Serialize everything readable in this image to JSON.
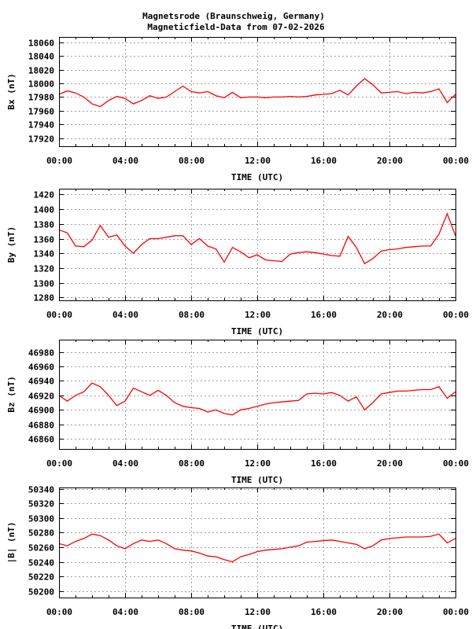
{
  "title_line1": "Magnetsrode (Braunschweig, Germany)",
  "title_line2": "Magneticfield-Data from 07-02-2026",
  "colors": {
    "series": "#ff0000",
    "grid": "#a0a0a0",
    "axis": "#000000"
  },
  "chart_data": [
    {
      "type": "line",
      "ylabel": "Bx (nT)",
      "xlabel": "TIME (UTC)",
      "xticks": [
        "00:00",
        "04:00",
        "08:00",
        "12:00",
        "16:00",
        "20:00",
        "00:00"
      ],
      "xlim": [
        0,
        24
      ],
      "yticks": [
        17920,
        17940,
        17960,
        17980,
        18000,
        18020,
        18040,
        18060
      ],
      "ylim": [
        17908,
        18068
      ],
      "grid": true,
      "x_step_hours": 0.5,
      "values": [
        17984,
        17989,
        17986,
        17980,
        17970,
        17966,
        17975,
        17981,
        17978,
        17970,
        17975,
        17982,
        17978,
        17980,
        17988,
        17996,
        17988,
        17986,
        17988,
        17982,
        17979,
        17987,
        17979,
        17980,
        17980,
        17979,
        17980,
        17980,
        17981,
        17980,
        17981,
        17983,
        17984,
        17985,
        17990,
        17983,
        17996,
        18007,
        17998,
        17986,
        17987,
        17988,
        17985,
        17987,
        17986,
        17988,
        17992,
        17972,
        17984
      ]
    },
    {
      "type": "line",
      "ylabel": "By (nT)",
      "xlabel": "TIME (UTC)",
      "xticks": [
        "00:00",
        "04:00",
        "08:00",
        "12:00",
        "16:00",
        "20:00",
        "00:00"
      ],
      "xlim": [
        0,
        24
      ],
      "yticks": [
        1280,
        1300,
        1320,
        1340,
        1360,
        1380,
        1400,
        1420
      ],
      "ylim": [
        1276,
        1428
      ],
      "grid": true,
      "x_step_hours": 0.5,
      "values": [
        1372,
        1368,
        1350,
        1349,
        1358,
        1378,
        1362,
        1365,
        1350,
        1340,
        1352,
        1360,
        1360,
        1362,
        1364,
        1364,
        1352,
        1360,
        1350,
        1346,
        1328,
        1348,
        1342,
        1334,
        1338,
        1331,
        1330,
        1329,
        1339,
        1341,
        1342,
        1341,
        1339,
        1337,
        1336,
        1363,
        1348,
        1326,
        1333,
        1343,
        1345,
        1346,
        1348,
        1349,
        1350,
        1350,
        1366,
        1394,
        1364
      ]
    },
    {
      "type": "line",
      "ylabel": "Bz (nT)",
      "xlabel": "TIME (UTC)",
      "xticks": [
        "00:00",
        "04:00",
        "08:00",
        "12:00",
        "16:00",
        "20:00",
        "00:00"
      ],
      "xlim": [
        0,
        24
      ],
      "yticks": [
        46860,
        46880,
        46900,
        46920,
        46940,
        46960,
        46980
      ],
      "ylim": [
        46846,
        46997
      ],
      "grid": true,
      "x_step_hours": 0.5,
      "values": [
        46920,
        46912,
        46920,
        46925,
        46937,
        46932,
        46920,
        46906,
        46912,
        46930,
        46925,
        46920,
        46927,
        46920,
        46910,
        46905,
        46903,
        46902,
        46897,
        46900,
        46895,
        46893,
        46900,
        46902,
        46905,
        46908,
        46910,
        46911,
        46912,
        46913,
        46922,
        46923,
        46922,
        46924,
        46920,
        46912,
        46918,
        46900,
        46910,
        46922,
        46924,
        46926,
        46926,
        46927,
        46928,
        46928,
        46932,
        46916,
        46925
      ]
    },
    {
      "type": "line",
      "ylabel": "|B| (nT)",
      "xlabel": "TIME (UTC)",
      "xticks": [
        "00:00",
        "04:00",
        "08:00",
        "12:00",
        "16:00",
        "20:00",
        "00:00"
      ],
      "xlim": [
        0,
        24
      ],
      "yticks": [
        50200,
        50220,
        50240,
        50260,
        50280,
        50300,
        50320,
        50340
      ],
      "ylim": [
        50191,
        50342
      ],
      "grid": true,
      "x_step_hours": 0.5,
      "values": [
        50265,
        50262,
        50268,
        50272,
        50278,
        50276,
        50270,
        50262,
        50258,
        50265,
        50270,
        50268,
        50270,
        50265,
        50258,
        50256,
        50255,
        50252,
        50248,
        50247,
        50243,
        50240,
        50247,
        50250,
        50254,
        50256,
        50257,
        50258,
        50260,
        50262,
        50267,
        50268,
        50269,
        50270,
        50268,
        50266,
        50264,
        50258,
        50262,
        50270,
        50272,
        50273,
        50274,
        50274,
        50274,
        50275,
        50278,
        50266,
        50272
      ]
    }
  ]
}
